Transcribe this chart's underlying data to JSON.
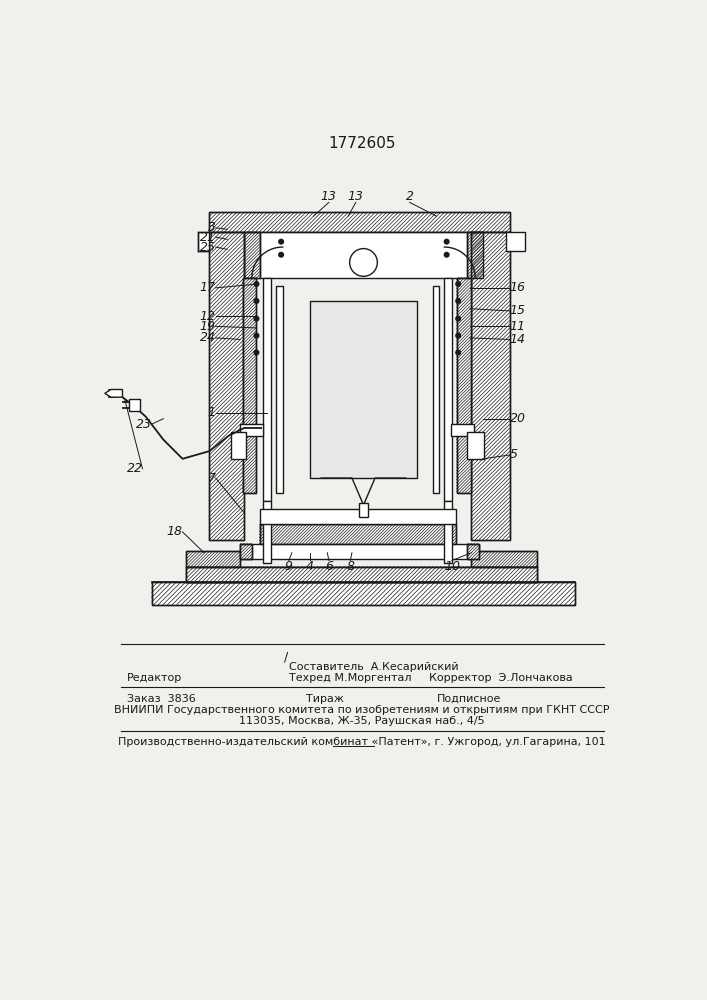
{
  "patent_number": "1772605",
  "bg_color": "#e8e6e0",
  "paper_color": "#f2f0ec",
  "line_color": "#1a1a1a",
  "footer": {
    "slash": "/",
    "sostavitel": "Составитель  А.Кесарийский",
    "redaktor": "Редактор",
    "tehred": "Техред М.Моргентал",
    "korrektor": "Корректор  Э.Лончакова",
    "zakaz": "Заказ  3836",
    "tirazh": "Тираж",
    "podpisnoe": "Подписное",
    "vniipи": "ВНИИПИ Государственного комитета по изобретениям и открытиям при ГКНТ СССР",
    "address": "113035, Москва, Ж-35, Раушская наб., 4/5",
    "producer": "Производственно-издательский комбинат «Патент», г. Ужгород, ул.Гагарина, 101"
  },
  "labels": {
    "top": [
      [
        "13",
        320,
        108
      ],
      [
        "13",
        350,
        108
      ],
      [
        "2",
        430,
        108
      ]
    ],
    "left": [
      [
        "3",
        175,
        143
      ],
      [
        "21",
        175,
        155
      ],
      [
        "25",
        175,
        168
      ],
      [
        "17",
        175,
        223
      ],
      [
        "12",
        175,
        260
      ],
      [
        "19",
        175,
        275
      ],
      [
        "24",
        175,
        292
      ],
      [
        "1",
        175,
        380
      ],
      [
        "7",
        175,
        470
      ],
      [
        "18",
        133,
        530
      ],
      [
        "23",
        75,
        400
      ],
      [
        "22",
        65,
        455
      ]
    ],
    "right": [
      [
        "16",
        530,
        220
      ],
      [
        "15",
        530,
        248
      ],
      [
        "11",
        530,
        268
      ],
      [
        "14",
        530,
        288
      ],
      [
        "20",
        530,
        388
      ],
      [
        "5",
        530,
        435
      ]
    ],
    "bottom": [
      [
        "9",
        255,
        570
      ],
      [
        "4",
        283,
        570
      ],
      [
        "6",
        308,
        570
      ],
      [
        "8",
        333,
        570
      ],
      [
        "10",
        467,
        570
      ]
    ]
  }
}
